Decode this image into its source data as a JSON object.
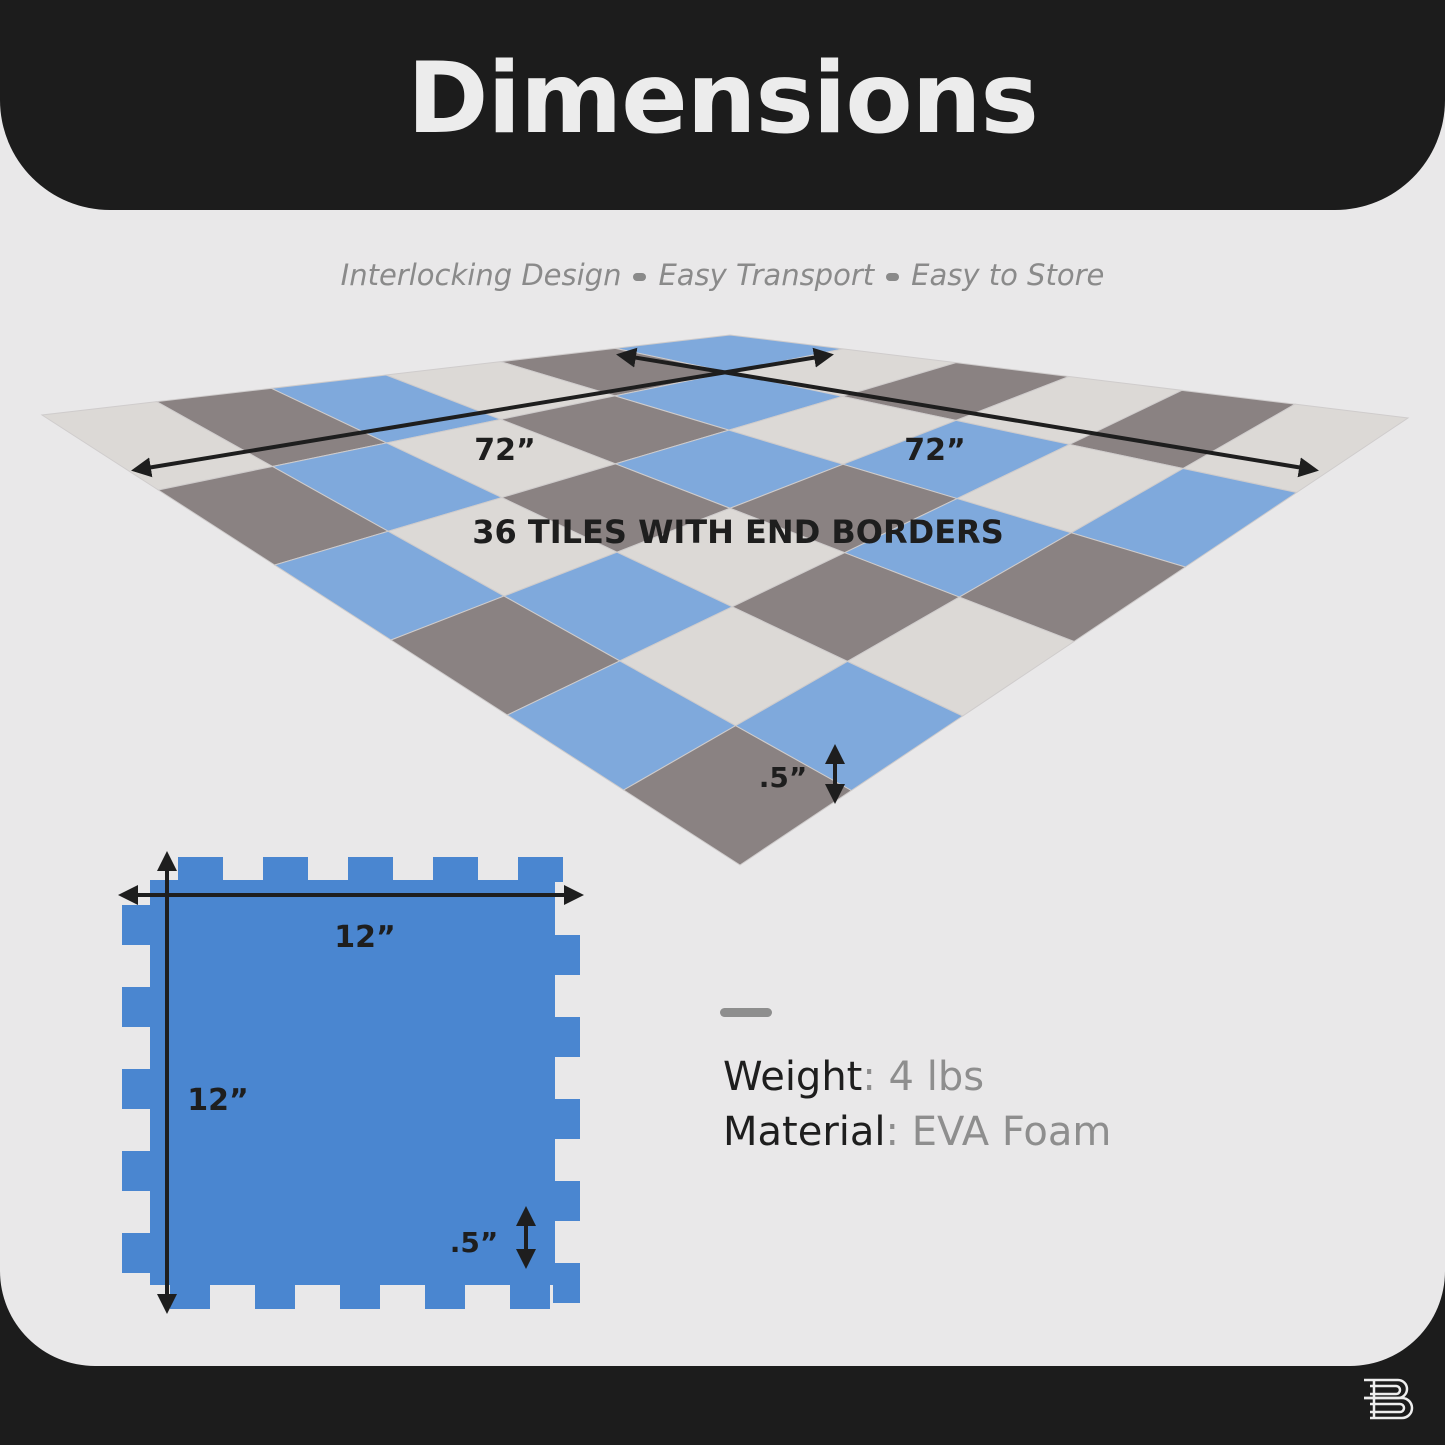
{
  "header": {
    "title": "Dimensions"
  },
  "subtitle": {
    "items": [
      "Interlocking Design",
      "Easy Transport",
      "Easy to Store"
    ]
  },
  "mat": {
    "width_label": "72”",
    "depth_label": "72”",
    "tiles_label": "36 TILES WITH END BORDERS",
    "thickness_label": ".5”",
    "colors": {
      "blue": "#7fa9dc",
      "gray": "#8a8282",
      "light": "#dcd9d6"
    },
    "pattern": [
      [
        "blue",
        "light",
        "gray",
        "light",
        "gray",
        "light"
      ],
      [
        "gray",
        "blue",
        "light",
        "blue",
        "light",
        "blue"
      ],
      [
        "light",
        "gray",
        "blue",
        "gray",
        "blue",
        "gray"
      ],
      [
        "blue",
        "light",
        "gray",
        "light",
        "gray",
        "light"
      ],
      [
        "gray",
        "blue",
        "light",
        "blue",
        "light",
        "blue"
      ],
      [
        "light",
        "gray",
        "blue",
        "gray",
        "blue",
        "gray"
      ]
    ]
  },
  "tile": {
    "width_label": "12”",
    "height_label": "12”",
    "thickness_label": ".5”",
    "color": "#4a86d0"
  },
  "specs": {
    "weight_label": "Weight",
    "weight_value": ": 4 lbs",
    "material_label": "Material",
    "material_value": ": EVA Foam"
  },
  "brand": {
    "logo_text": "B"
  }
}
